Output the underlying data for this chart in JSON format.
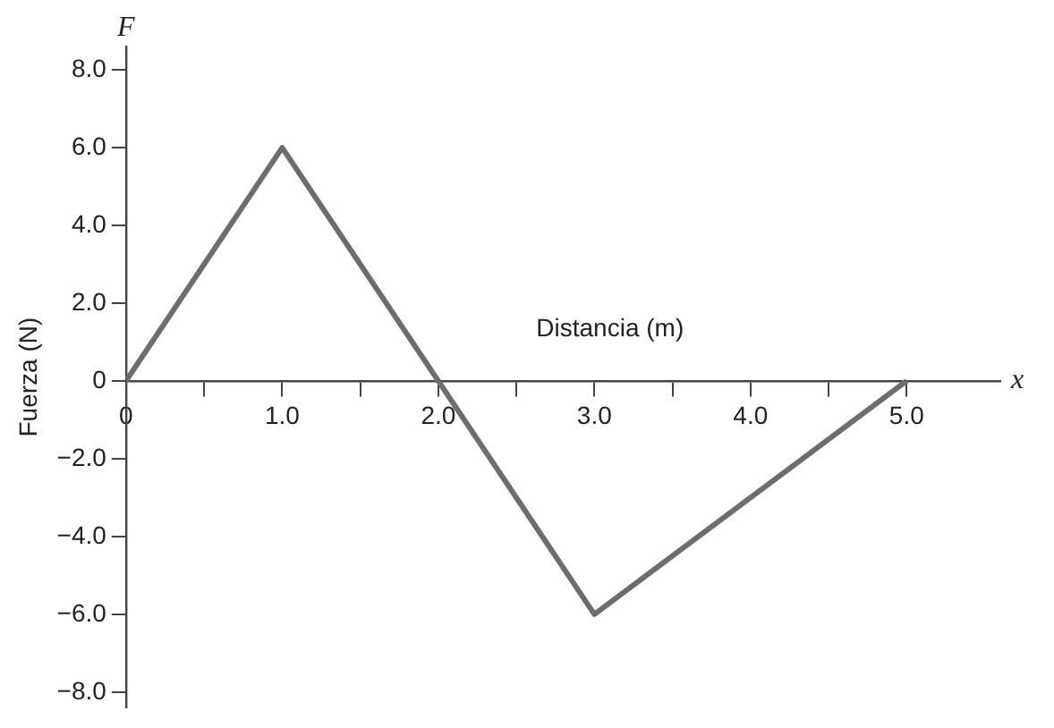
{
  "chart_data": {
    "type": "line",
    "xlabel": "Distancia (m)",
    "ylabel": "Fuerza (N)",
    "annotations": [
      "F",
      "x"
    ],
    "x": [
      0,
      1,
      2,
      3,
      5
    ],
    "values": [
      0,
      6,
      0,
      -6,
      0
    ],
    "color": "#6d6d6d",
    "marker": "none",
    "line_style": "solid",
    "xlim": [
      0,
      5.6
    ],
    "ylim": [
      -8.4,
      8.6
    ],
    "xticks": [
      0,
      {
        "value": 0.5,
        "label": null
      },
      {
        "value": 1,
        "label": "1.0"
      },
      {
        "value": 1.5,
        "label": null
      },
      {
        "value": 2,
        "label": "2.0"
      },
      {
        "value": 2.5,
        "label": null
      },
      {
        "value": 3,
        "label": "3.0"
      },
      {
        "value": 3.5,
        "label": null
      },
      {
        "value": 4,
        "label": "4.0"
      },
      {
        "value": 4.5,
        "label": null
      },
      {
        "value": 5,
        "label": "5.0"
      }
    ],
    "yticks": [
      {
        "value": -8,
        "label": "−8.0"
      },
      {
        "value": -6,
        "label": "−6.0"
      },
      {
        "value": -4,
        "label": "−4.0"
      },
      {
        "value": -2,
        "label": "−2.0"
      },
      0,
      {
        "value": 2,
        "label": "2.0"
      },
      {
        "value": 4,
        "label": "4.0"
      },
      {
        "value": 6,
        "label": "6.0"
      },
      {
        "value": 8,
        "label": "8.0"
      }
    ]
  }
}
